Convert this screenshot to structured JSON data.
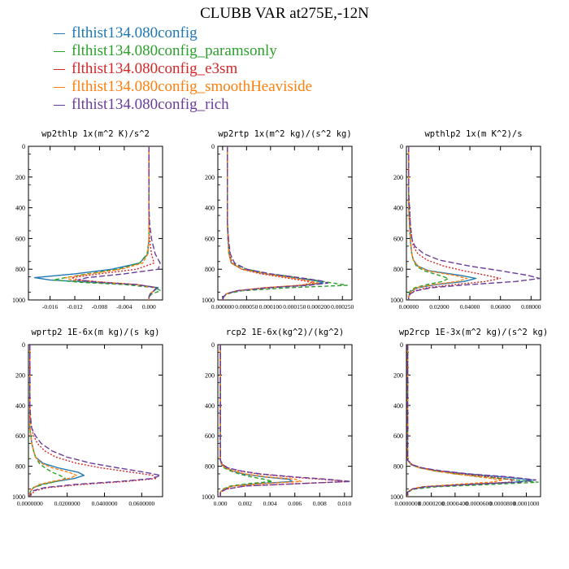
{
  "title": "CLUBB VAR at275E,-12N",
  "legend": [
    {
      "label": "flthist134.080config",
      "color": "#1f77b4"
    },
    {
      "label": "flthist134.080config_paramsonly",
      "color": "#2ca02c"
    },
    {
      "label": "flthist134.080config_e3sm",
      "color": "#d62728"
    },
    {
      "label": "flthist134.080config_smoothHeaviside",
      "color": "#ff7f0e"
    },
    {
      "label": "flthist134.080config_rich",
      "color": "#6a3d9a"
    }
  ],
  "chart_data": [
    {
      "type": "line",
      "title": "wp2thlp  1x(m^2 K)/s^2",
      "xlim": [
        -0.0195,
        0.0022
      ],
      "ylim": [
        1000,
        0
      ],
      "y_ticks": [
        0,
        200,
        400,
        600,
        800,
        1000
      ],
      "x_ticks": [
        -0.016,
        -0.012,
        -0.008,
        -0.004,
        0.0
      ],
      "x_tick_labels": [
        "-0.016",
        "-0.012",
        "-0.008",
        "-0.004",
        "0.000"
      ],
      "y": [
        0,
        100,
        200,
        300,
        400,
        500,
        600,
        700,
        760,
        800,
        830,
        855,
        870,
        885,
        900,
        920,
        940,
        960,
        980,
        1000
      ],
      "series": [
        {
          "values": [
            0.0,
            0.0,
            0.0,
            0.0,
            0.0,
            0.0,
            0.0,
            -0.0002,
            -0.0015,
            -0.006,
            -0.012,
            -0.0185,
            -0.016,
            -0.009,
            -0.002,
            0.0015,
            0.0008,
            0.0002,
            0.0,
            0.0
          ]
        },
        {
          "values": [
            0.0,
            0.0,
            0.0,
            0.0,
            0.0,
            0.0,
            0.0,
            -0.0003,
            -0.0015,
            -0.005,
            -0.01,
            -0.0135,
            -0.0155,
            -0.011,
            -0.004,
            0.001,
            0.0019,
            0.0005,
            0.0,
            0.0
          ]
        },
        {
          "values": [
            0.0,
            0.0,
            0.0,
            0.0,
            0.0,
            0.0,
            0.0001,
            0.0004,
            0.0008,
            -0.002,
            -0.008,
            -0.0125,
            -0.0115,
            -0.007,
            -0.002,
            0.0012,
            0.0008,
            0.0002,
            0.0,
            0.0
          ]
        },
        {
          "values": [
            0.0,
            0.0,
            0.0,
            0.0,
            0.0,
            0.0,
            0.0,
            -0.0002,
            -0.001,
            -0.0045,
            -0.0095,
            -0.0135,
            -0.0125,
            -0.0075,
            -0.002,
            0.0012,
            0.0008,
            0.0002,
            0.0,
            0.0
          ]
        },
        {
          "values": [
            0.0,
            0.0,
            0.0,
            0.0,
            0.0,
            0.0001,
            0.0004,
            0.001,
            0.0018,
            0.0015,
            -0.004,
            -0.01,
            -0.0115,
            -0.008,
            -0.002,
            0.0012,
            0.0008,
            0.0002,
            0.0,
            0.0
          ]
        }
      ]
    },
    {
      "type": "line",
      "title": "wp2rtp  1x(m^2 kg)/(s^2 kg)",
      "xlim": [
        -1e-05,
        0.00027
      ],
      "ylim": [
        1000,
        0
      ],
      "y_ticks": [
        0,
        200,
        400,
        600,
        800,
        1000
      ],
      "x_ticks": [
        0.0,
        5e-05,
        0.0001,
        0.00015,
        0.0002,
        0.00025
      ],
      "x_tick_labels": [
        "0.000000",
        "0.000050",
        "0.000100",
        "0.000150",
        "0.000200",
        "0.000250"
      ],
      "y": [
        0,
        100,
        200,
        300,
        400,
        500,
        600,
        700,
        760,
        800,
        830,
        855,
        875,
        890,
        905,
        920,
        940,
        960,
        980,
        1000
      ],
      "series": [
        {
          "values": [
            1e-05,
            1e-05,
            1e-05,
            1e-05,
            1e-05,
            1e-05,
            1.1e-05,
            1.3e-05,
            1.8e-05,
            4e-05,
            9e-05,
            0.00015,
            0.000195,
            0.00021,
            0.00017,
            9e-05,
            3e-05,
            8e-06,
            2e-06,
            0.0
          ]
        },
        {
          "values": [
            1e-05,
            1e-05,
            1e-05,
            1e-05,
            1e-05,
            1e-05,
            1.1e-05,
            1.3e-05,
            2e-05,
            5e-05,
            0.0001,
            0.00016,
            0.0002,
            0.00023,
            0.00026,
            0.00014,
            4e-05,
            1e-05,
            2e-06,
            0.0
          ]
        },
        {
          "values": [
            1e-05,
            1e-05,
            1e-05,
            1e-05,
            1e-05,
            1e-05,
            1.2e-05,
            1.5e-05,
            2e-05,
            4e-05,
            8e-05,
            0.00013,
            0.00017,
            0.00019,
            0.00016,
            9e-05,
            3e-05,
            8e-06,
            2e-06,
            0.0
          ]
        },
        {
          "values": [
            1e-05,
            1e-05,
            1e-05,
            1e-05,
            1e-05,
            1e-05,
            1.1e-05,
            1.3e-05,
            1.8e-05,
            4e-05,
            9e-05,
            0.00014,
            0.00018,
            0.0002,
            0.00016,
            9e-05,
            3e-05,
            8e-06,
            2e-06,
            0.0
          ]
        },
        {
          "values": [
            1e-05,
            1e-05,
            1e-05,
            1e-05,
            1e-05,
            1e-05,
            1.2e-05,
            1.6e-05,
            2.5e-05,
            5e-05,
            0.0001,
            0.00016,
            0.000205,
            0.00022,
            0.00018,
            0.0001,
            3e-05,
            8e-06,
            2e-06,
            0.0
          ]
        }
      ]
    },
    {
      "type": "line",
      "title": "wpthlp2  1x(m K^2)/s",
      "xlim": [
        -0.0015,
        0.0862
      ],
      "ylim": [
        1000,
        0
      ],
      "y_ticks": [
        0,
        200,
        400,
        600,
        800,
        1000
      ],
      "x_ticks": [
        0.0,
        0.02,
        0.04,
        0.06,
        0.08
      ],
      "x_tick_labels": [
        "0.00000",
        "0.02000",
        "0.04000",
        "0.06000",
        "0.08000"
      ],
      "y": [
        0,
        100,
        200,
        300,
        400,
        500,
        600,
        650,
        700,
        740,
        780,
        810,
        840,
        860,
        880,
        900,
        920,
        940,
        960,
        980,
        1000
      ],
      "series": [
        {
          "values": [
            0.0,
            0.0,
            0.0,
            0.0,
            0.0,
            0.0005,
            0.001,
            0.0015,
            0.002,
            0.003,
            0.006,
            0.013,
            0.034,
            0.044,
            0.036,
            0.018,
            0.006,
            0.002,
            0.0005,
            0.0,
            0.0
          ]
        },
        {
          "values": [
            0.0,
            0.0,
            0.0,
            0.0,
            0.0,
            0.0005,
            0.001,
            0.0015,
            0.002,
            0.003,
            0.005,
            0.01,
            0.02,
            0.026,
            0.022,
            0.012,
            0.004,
            0.001,
            0.0,
            0.0,
            0.0
          ]
        },
        {
          "values": [
            0.0,
            0.0,
            0.0,
            0.0,
            0.0005,
            0.001,
            0.002,
            0.003,
            0.006,
            0.012,
            0.023,
            0.036,
            0.051,
            0.06,
            0.05,
            0.03,
            0.012,
            0.004,
            0.001,
            0.0,
            0.0
          ]
        },
        {
          "values": [
            0.0,
            0.0,
            0.0,
            0.0,
            0.0,
            0.0005,
            0.001,
            0.0015,
            0.002,
            0.003,
            0.006,
            0.012,
            0.03,
            0.038,
            0.032,
            0.016,
            0.005,
            0.002,
            0.0005,
            0.0,
            0.0
          ]
        },
        {
          "values": [
            0.0,
            0.0,
            0.0,
            0.0,
            0.0005,
            0.001,
            0.002,
            0.004,
            0.01,
            0.02,
            0.04,
            0.06,
            0.078,
            0.0855,
            0.07,
            0.04,
            0.015,
            0.005,
            0.001,
            0.0,
            0.0
          ]
        }
      ]
    },
    {
      "type": "line",
      "title": "wprtp2  1E-6x(m kg)/(s kg)",
      "xlim": [
        -0.0008,
        0.0712
      ],
      "ylim": [
        1000,
        0
      ],
      "y_ticks": [
        0,
        200,
        400,
        600,
        800,
        1000
      ],
      "x_ticks": [
        0.0,
        0.02,
        0.04,
        0.06
      ],
      "x_tick_labels": [
        "0.0000000",
        "0.0200000",
        "0.0400000",
        "0.0600000"
      ],
      "y": [
        0,
        100,
        200,
        300,
        400,
        500,
        550,
        600,
        650,
        700,
        740,
        780,
        810,
        840,
        860,
        880,
        900,
        920,
        940,
        960,
        980,
        1000
      ],
      "series": [
        {
          "values": [
            0.0,
            0.0,
            0.0,
            0.0,
            0.0,
            0.0,
            0.0,
            0.0005,
            0.001,
            0.002,
            0.003,
            0.007,
            0.015,
            0.026,
            0.029,
            0.024,
            0.014,
            0.006,
            0.002,
            0.0005,
            0.0,
            0.0
          ]
        },
        {
          "values": [
            0.0,
            0.0,
            0.0,
            0.0,
            0.0,
            0.0,
            0.0,
            0.0005,
            0.001,
            0.002,
            0.003,
            0.005,
            0.008,
            0.012,
            0.016,
            0.019,
            0.014,
            0.007,
            0.002,
            0.0005,
            0.0,
            0.0
          ]
        },
        {
          "values": [
            0.0,
            0.0,
            0.0,
            0.0,
            0.0,
            0.0,
            0.001,
            0.002,
            0.004,
            0.008,
            0.014,
            0.025,
            0.038,
            0.055,
            0.066,
            0.068,
            0.052,
            0.028,
            0.01,
            0.003,
            0.001,
            0.0
          ]
        },
        {
          "values": [
            0.0,
            0.0,
            0.0,
            0.0,
            0.0,
            0.0,
            0.0,
            0.0005,
            0.001,
            0.002,
            0.003,
            0.006,
            0.012,
            0.021,
            0.025,
            0.021,
            0.012,
            0.005,
            0.002,
            0.0005,
            0.0,
            0.0
          ]
        },
        {
          "values": [
            0.0,
            0.0,
            0.0,
            0.0,
            0.0,
            0.0005,
            0.001,
            0.003,
            0.006,
            0.012,
            0.02,
            0.033,
            0.047,
            0.062,
            0.07,
            0.066,
            0.048,
            0.024,
            0.008,
            0.002,
            0.0005,
            0.0
          ]
        }
      ]
    },
    {
      "type": "line",
      "title": "rcp2  1E-6x(kg^2)/(kg^2)",
      "xlim": [
        -0.0002,
        0.0106
      ],
      "ylim": [
        1000,
        0
      ],
      "y_ticks": [
        0,
        200,
        400,
        600,
        800,
        1000
      ],
      "x_ticks": [
        0.0,
        0.002,
        0.004,
        0.006,
        0.008,
        0.01
      ],
      "x_tick_labels": [
        "0.000",
        "0.002",
        "0.004",
        "0.006",
        "0.008",
        "0.010"
      ],
      "y": [
        0,
        200,
        400,
        600,
        700,
        760,
        790,
        810,
        830,
        850,
        870,
        885,
        900,
        915,
        930,
        950,
        970,
        1000
      ],
      "series": [
        {
          "values": [
            0.0,
            0.0,
            0.0,
            0.0,
            0.0,
            0.0,
            0.0001,
            0.0004,
            0.001,
            0.0018,
            0.0035,
            0.0055,
            0.0058,
            0.003,
            0.001,
            0.0003,
            0.0,
            0.0
          ]
        },
        {
          "values": [
            0.0,
            0.0,
            0.0,
            0.0,
            0.0,
            0.0,
            0.0001,
            0.0003,
            0.0008,
            0.0015,
            0.0025,
            0.0035,
            0.0042,
            0.0022,
            0.0008,
            0.0002,
            0.0,
            0.0
          ]
        },
        {
          "values": [
            0.0,
            0.0,
            0.0,
            0.0,
            0.0,
            0.0,
            0.0002,
            0.0006,
            0.0015,
            0.003,
            0.0055,
            0.008,
            0.0103,
            0.006,
            0.002,
            0.0005,
            0.0,
            0.0
          ]
        },
        {
          "values": [
            0.0,
            0.0,
            0.0,
            0.0,
            0.0,
            0.0,
            0.0001,
            0.0004,
            0.001,
            0.002,
            0.0037,
            0.006,
            0.0065,
            0.0033,
            0.001,
            0.0003,
            0.0,
            0.0
          ]
        },
        {
          "values": [
            0.0,
            0.0,
            0.0,
            0.0,
            0.0,
            0.0,
            0.0002,
            0.0006,
            0.0016,
            0.0032,
            0.006,
            0.0085,
            0.0105,
            0.0062,
            0.002,
            0.0005,
            0.0,
            0.0
          ]
        }
      ]
    },
    {
      "type": "line",
      "title": "wp2rcp  1E-3x(m^2 kg)/(s^2 kg)",
      "xlim": [
        -1e-06,
        0.000112
      ],
      "ylim": [
        1000,
        0
      ],
      "y_ticks": [
        0,
        200,
        400,
        600,
        800,
        1000
      ],
      "x_ticks": [
        0.0,
        2e-05,
        4e-05,
        6e-05,
        8e-05,
        0.0001
      ],
      "x_tick_labels": [
        "0.0000000",
        "0.0000200",
        "0.0000400",
        "0.0000600",
        "0.0000800",
        "0.0001000"
      ],
      "y": [
        0,
        200,
        400,
        600,
        700,
        760,
        790,
        810,
        830,
        850,
        870,
        890,
        905,
        920,
        935,
        950,
        970,
        1000
      ],
      "series": [
        {
          "values": [
            0.0,
            0.0,
            0.0,
            0.0,
            0.0,
            0.0,
            3e-06,
            1e-05,
            2.5e-05,
            5e-05,
            8e-05,
            0.000105,
            9e-05,
            5e-05,
            1.5e-05,
            4e-06,
            0.0,
            0.0
          ]
        },
        {
          "values": [
            0.0,
            0.0,
            0.0,
            0.0,
            0.0,
            0.0,
            3e-06,
            1e-05,
            2.2e-05,
            4e-05,
            6.5e-05,
            9e-05,
            0.00011,
            7e-05,
            2.5e-05,
            6e-06,
            0.0,
            0.0
          ]
        },
        {
          "values": [
            0.0,
            0.0,
            0.0,
            0.0,
            0.0,
            0.0,
            4e-06,
            1.2e-05,
            2.6e-05,
            4.5e-05,
            7e-05,
            9e-05,
            8.5e-05,
            5e-05,
            1.5e-05,
            4e-06,
            0.0,
            0.0
          ]
        },
        {
          "values": [
            0.0,
            0.0,
            0.0,
            0.0,
            0.0,
            0.0,
            3e-06,
            1e-05,
            2.2e-05,
            4e-05,
            6e-05,
            8e-05,
            7e-05,
            4e-05,
            1.2e-05,
            3e-06,
            0.0,
            0.0
          ]
        },
        {
          "values": [
            0.0,
            0.0,
            0.0,
            0.0,
            0.0,
            0.0,
            4e-06,
            1.2e-05,
            2.8e-05,
            5.2e-05,
            8.5e-05,
            0.000108,
            9.5e-05,
            5.2e-05,
            1.5e-05,
            4e-06,
            0.0,
            0.0
          ]
        }
      ]
    }
  ]
}
